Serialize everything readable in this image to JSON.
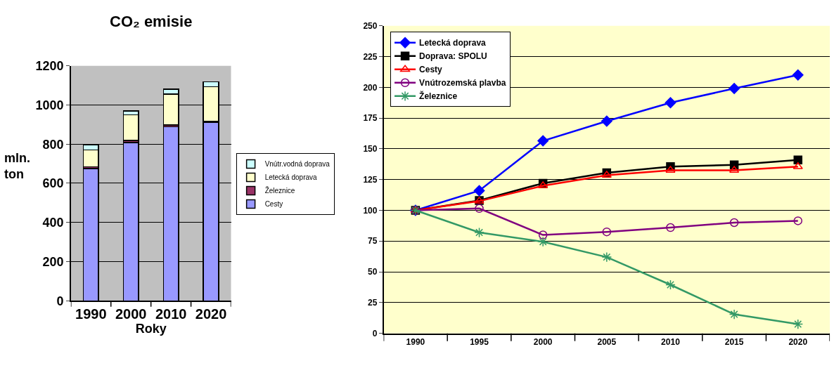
{
  "chart_data": [
    {
      "type": "bar",
      "title": "CO₂ emisie",
      "xlabel": "Roky",
      "ylabel": "mln. ton",
      "categories": [
        "1990",
        "2000",
        "2010",
        "2020"
      ],
      "stacked": true,
      "ylim": [
        0,
        1200
      ],
      "yticks": [
        0,
        200,
        400,
        600,
        800,
        1000,
        1200
      ],
      "grid": "y",
      "legend": "right",
      "series": [
        {
          "name": "Cesty",
          "color": "#9999ff",
          "values": [
            675,
            808,
            888,
            912
          ]
        },
        {
          "name": "Železnice",
          "color": "#993366",
          "values": [
            10,
            10,
            10,
            3
          ]
        },
        {
          "name": "Letecká doprava",
          "color": "#ffffcc",
          "values": [
            85,
            132,
            157,
            178
          ]
        },
        {
          "name": "Vnútr.vodná doprava",
          "color": "#ccffff",
          "values": [
            25,
            20,
            25,
            25
          ]
        }
      ]
    },
    {
      "type": "line",
      "categories": [
        "1990",
        "1995",
        "2000",
        "2005",
        "2010",
        "2015",
        "2020"
      ],
      "ylim": [
        0,
        250
      ],
      "yticks": [
        0,
        25,
        50,
        75,
        100,
        125,
        150,
        175,
        200,
        225,
        250
      ],
      "grid": "y",
      "legend": "top left",
      "line_style": "solid",
      "series": [
        {
          "name": "Letecká doprava",
          "color": "#0000ff",
          "marker": "diamond",
          "values": [
            100,
            116,
            156.5,
            172.5,
            187.5,
            199,
            210
          ]
        },
        {
          "name": "Doprava: SPOLU",
          "color": "#000000",
          "marker": "square",
          "values": [
            100,
            108,
            122,
            130.5,
            135.5,
            137,
            141
          ]
        },
        {
          "name": "Cesty",
          "color": "#ff0000",
          "marker": "triangle",
          "values": [
            100,
            107.5,
            120,
            128.5,
            132.5,
            132.5,
            135.5
          ]
        },
        {
          "name": "Vnútrozemská plavba",
          "color": "#800080",
          "marker": "circle",
          "values": [
            100,
            101.5,
            80,
            82.5,
            86,
            90,
            91.5
          ]
        },
        {
          "name": "Železnice",
          "color": "#339966",
          "marker": "cross",
          "values": [
            100,
            82,
            74.5,
            62,
            39.5,
            15.5,
            7.5
          ]
        }
      ]
    }
  ]
}
